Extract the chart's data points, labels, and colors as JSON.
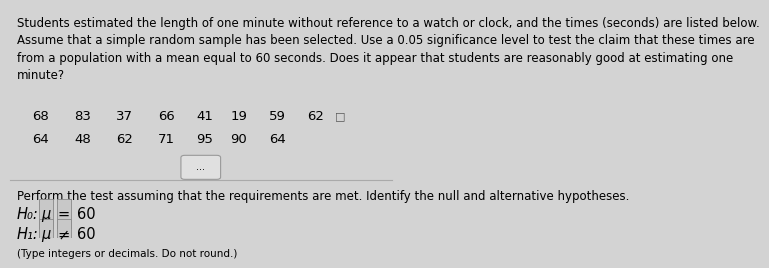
{
  "background_color": "#d3d3d3",
  "paragraph_text": "Students estimated the length of one minute without reference to a watch or clock, and the times (seconds) are listed below.\nAssume that a simple random sample has been selected. Use a 0.05 significance level to test the claim that these times are\nfrom a population with a mean equal to 60 seconds. Does it appear that students are reasonably good at estimating one\nminute?",
  "data_row1": [
    "68",
    "83",
    "37",
    "66",
    "41",
    "19",
    "59",
    "62"
  ],
  "data_row2": [
    "64",
    "48",
    "62",
    "71",
    "95",
    "90",
    "64"
  ],
  "ellipsis_text": "...",
  "perform_text": "Perform the test assuming that the requirements are met. Identify the null and alternative hypotheses.",
  "h0_label": "H₀:",
  "h0_mu": "μ",
  "h0_eq": "=",
  "h0_val": "60",
  "h1_label": "H₁:",
  "h1_mu": "μ",
  "h1_neq": "≠",
  "h1_val": "60",
  "type_note": "(Type integers or decimals. Do not round.)",
  "box_color": "#c8c8c8",
  "separator_color": "#aaaaaa",
  "font_size_para": 8.5,
  "font_size_data": 9.5,
  "font_size_hyp": 10.5
}
